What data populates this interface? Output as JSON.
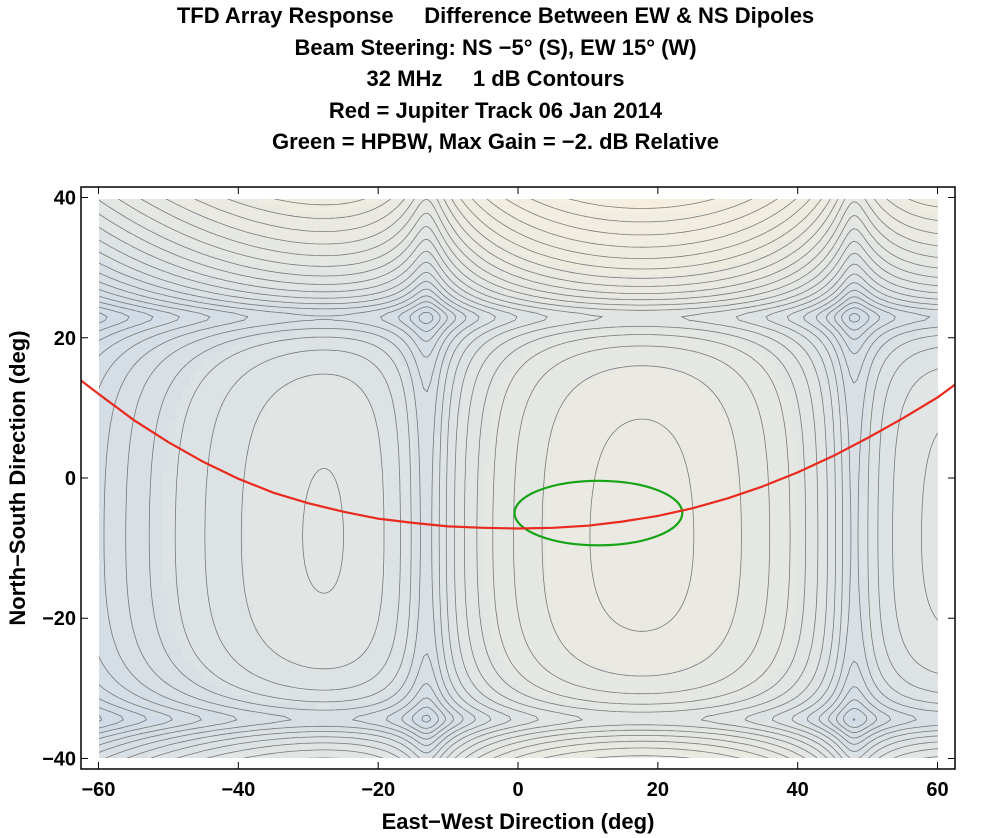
{
  "chart_data": {
    "type": "contour",
    "title_lines": [
      "TFD Array Response     Difference Between EW & NS Dipoles",
      "Beam Steering: NS −5° (S), EW 15° (W)",
      "32 MHz     1 dB Contours",
      "Red = Jupiter Track 06 Jan 2014",
      "Green = HPBW, Max Gain = −2. dB Relative"
    ],
    "xlabel": "East−West Direction (deg)",
    "ylabel": "North−South Direction (deg)",
    "xlim": [
      -62.5,
      62.5
    ],
    "ylim": [
      -41.5,
      41.5
    ],
    "data_extent": {
      "x": [
        -60,
        60
      ],
      "y": [
        -40,
        40
      ]
    },
    "xticks": [
      {
        "value": -60,
        "label": "−60"
      },
      {
        "value": -40,
        "label": "−40"
      },
      {
        "value": -20,
        "label": "−20"
      },
      {
        "value": 0,
        "label": "0"
      },
      {
        "value": 20,
        "label": "20"
      },
      {
        "value": 40,
        "label": "40"
      },
      {
        "value": 60,
        "label": "60"
      }
    ],
    "yticks": [
      {
        "value": -40,
        "label": "−40"
      },
      {
        "value": -20,
        "label": "−20"
      },
      {
        "value": 0,
        "label": "0"
      },
      {
        "value": 20,
        "label": "20"
      },
      {
        "value": 40,
        "label": "40"
      }
    ],
    "contour_interval_db": 1,
    "null_lines": {
      "x": [
        -13,
        48
      ],
      "y": [
        23,
        -34.5
      ]
    },
    "colors": {
      "low_region": "#4b1183",
      "high": "#f6efe0",
      "low": "#c4d6e8",
      "contour": "#555555",
      "jupiter_track": "#e82a1f",
      "hpbw": "#16a316"
    },
    "series": [
      {
        "name": "Jupiter Track 06 Jan 2014",
        "color": "#e82a1f",
        "x": [
          -62.5,
          -60,
          -55,
          -50,
          -45,
          -40,
          -35,
          -30,
          -25,
          -20,
          -15,
          -10,
          -5,
          0,
          5,
          10,
          15,
          20,
          25,
          30,
          35,
          40,
          45,
          50,
          55,
          60,
          62.5
        ],
        "y": [
          13.9,
          12.0,
          8.3,
          5.1,
          2.3,
          -0.1,
          -2.1,
          -3.6,
          -4.8,
          -5.8,
          -6.4,
          -6.9,
          -7.1,
          -7.2,
          -7.1,
          -6.8,
          -6.2,
          -5.4,
          -4.3,
          -2.9,
          -1.2,
          0.8,
          3.1,
          5.7,
          8.5,
          11.5,
          13.3
        ]
      }
    ],
    "hpbw_ellipse": {
      "name": "HPBW",
      "color": "#16a316",
      "center": [
        11.5,
        -5
      ],
      "semi_axis_x": 12,
      "semi_axis_y": 4.6
    }
  }
}
